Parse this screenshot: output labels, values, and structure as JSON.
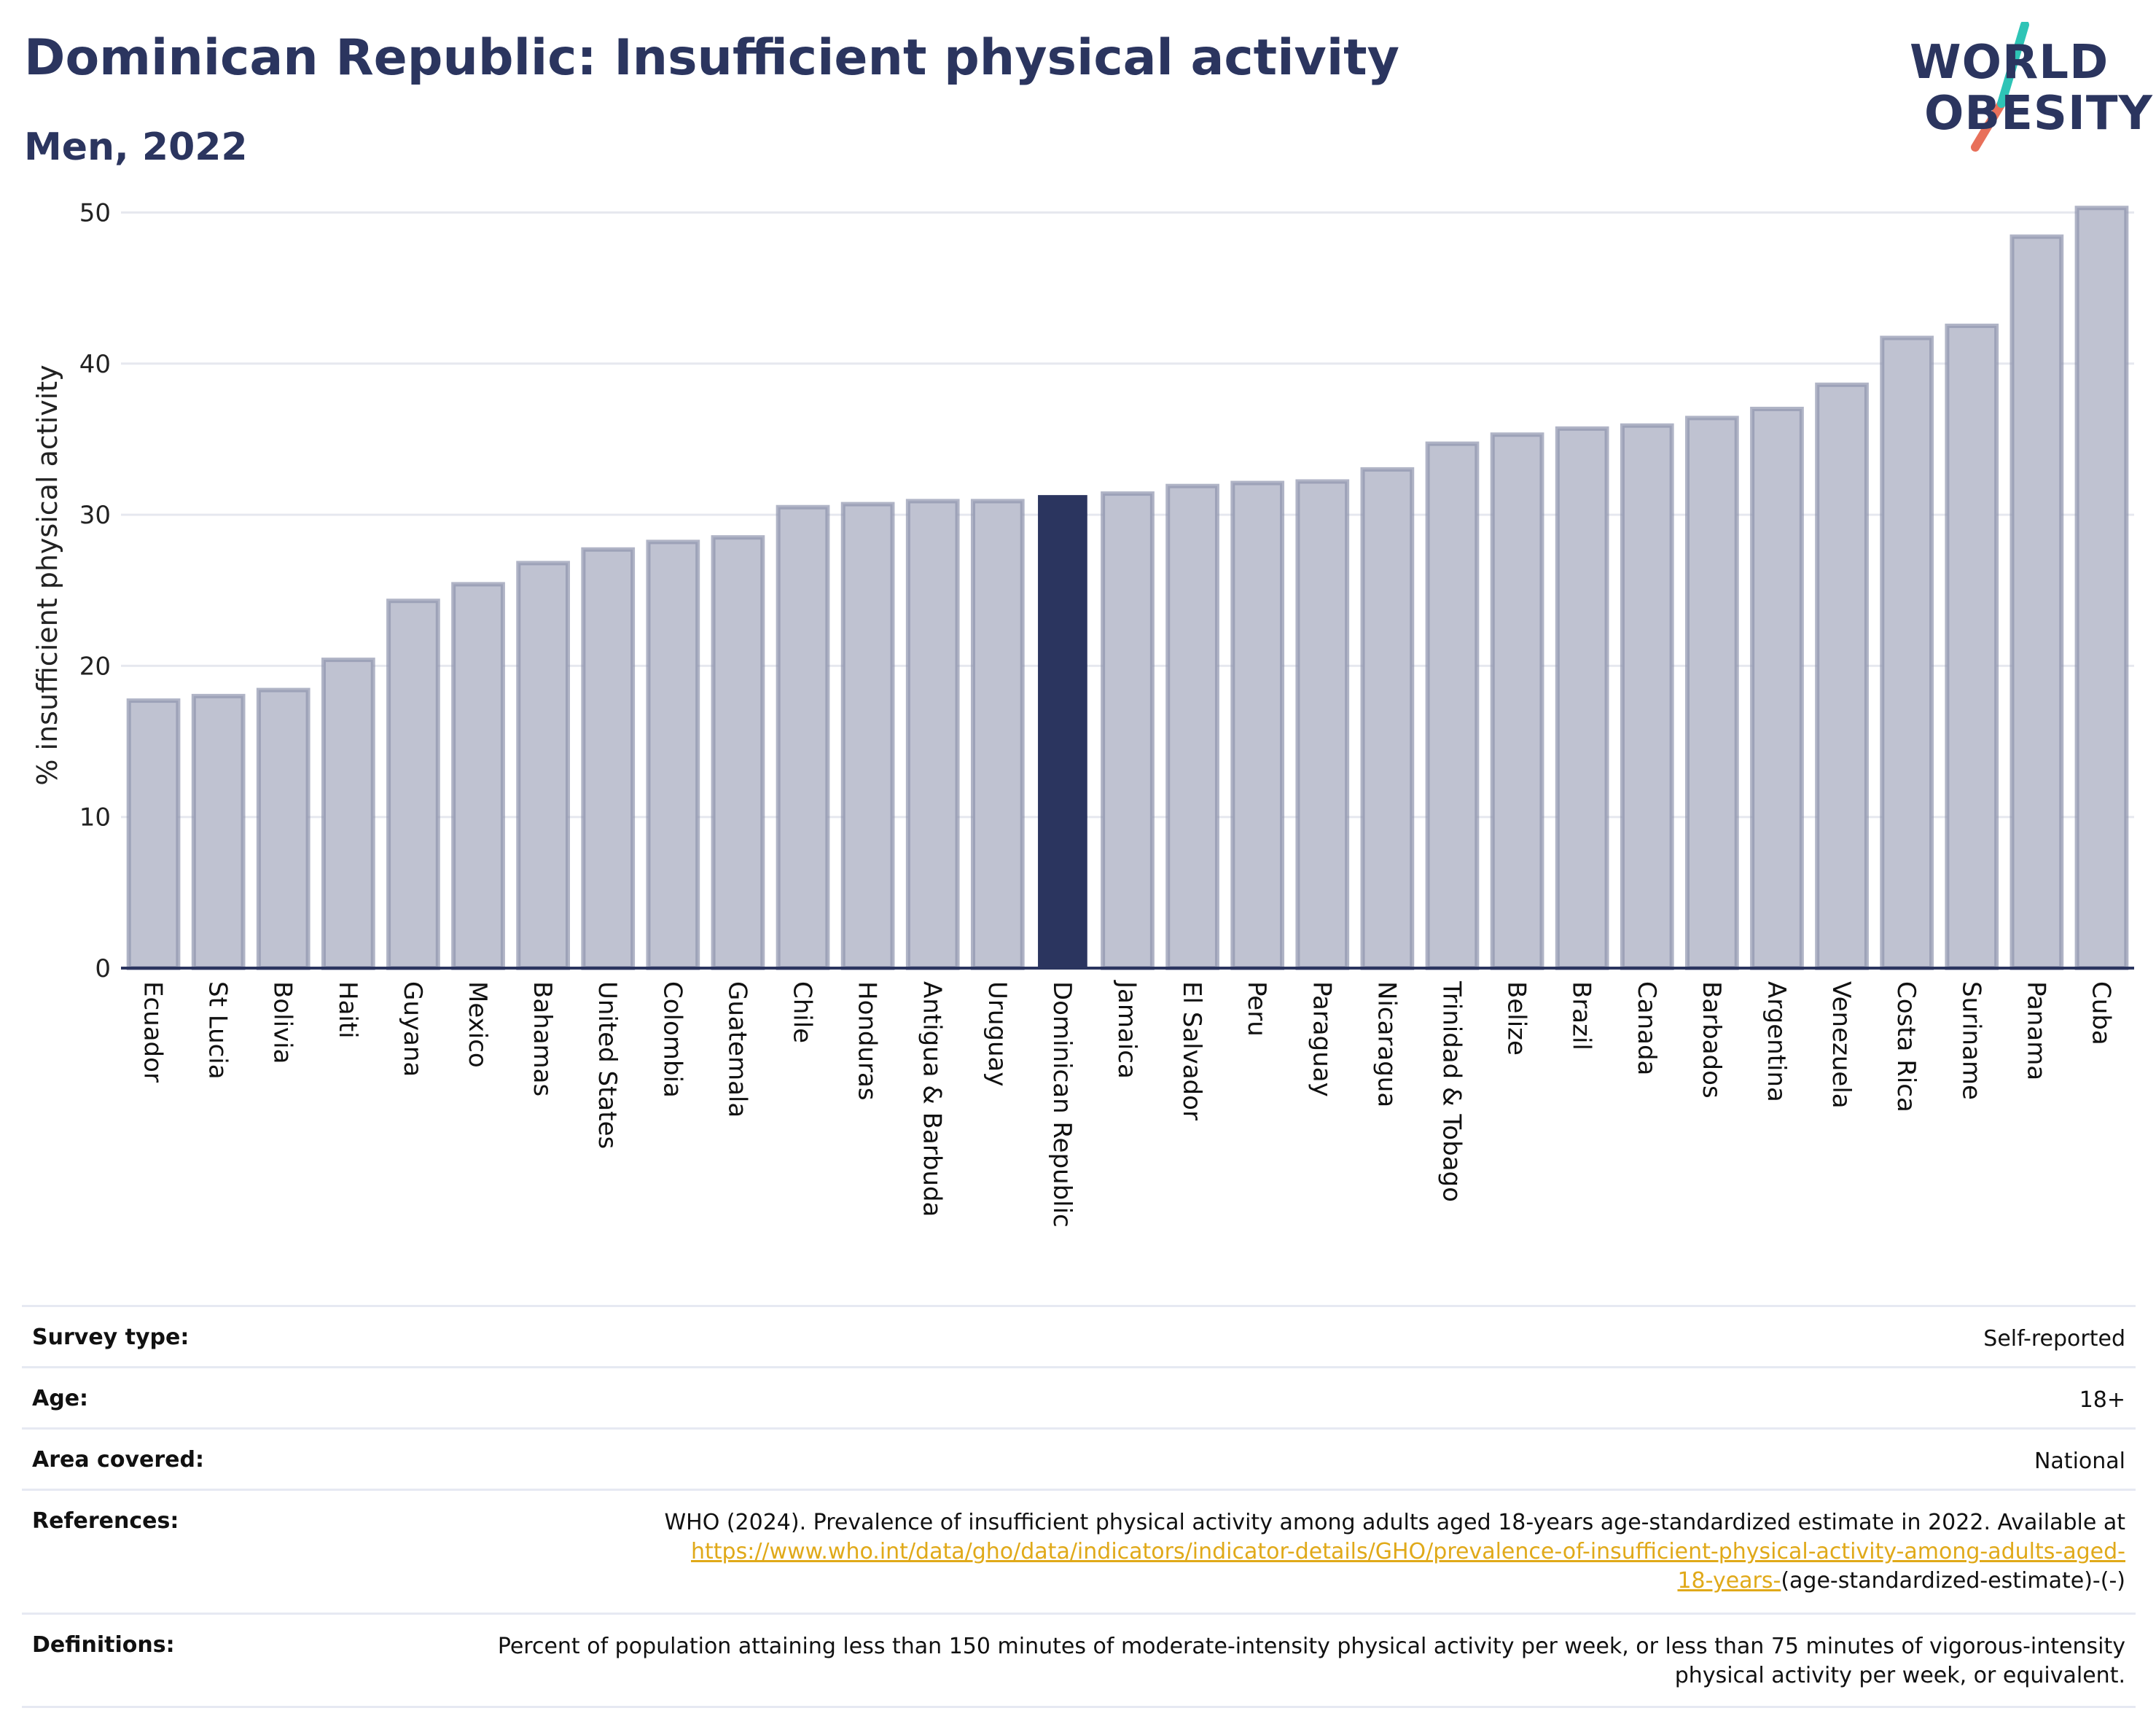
{
  "title": "Dominican Republic: Insufficient physical activity",
  "subtitle": "Men, 2022",
  "logo": {
    "line1": "WORLD",
    "line2": "OBESITY",
    "alt": "World Obesity logo"
  },
  "colors": {
    "bar": "#bfc2d1",
    "bar_border": "#8e94ae",
    "highlight": "#2b355f",
    "grid": "#e6e8ef",
    "axis": "#2b355f",
    "link": "#e0a919",
    "logo_text": "#2b355f",
    "logo_teal": "#2ec4b6",
    "logo_red": "#e8705a"
  },
  "chart_data": {
    "type": "bar",
    "title": "Dominican Republic: Insufficient physical activity",
    "subtitle": "Men, 2022",
    "xlabel": "",
    "ylabel": "% insufficient physical activity",
    "ylim": [
      0,
      52
    ],
    "yticks": [
      0,
      10,
      20,
      30,
      40,
      50
    ],
    "grid": true,
    "highlight": "Dominican Republic",
    "categories": [
      "Ecuador",
      "St Lucia",
      "Bolivia",
      "Haiti",
      "Guyana",
      "Mexico",
      "Bahamas",
      "United States",
      "Colombia",
      "Guatemala",
      "Chile",
      "Honduras",
      "Antigua & Barbuda",
      "Uruguay",
      "Dominican Republic",
      "Jamaica",
      "El Salvador",
      "Peru",
      "Paraguay",
      "Nicaragua",
      "Trinidad & Tobago",
      "Belize",
      "Brazil",
      "Canada",
      "Barbados",
      "Argentina",
      "Venezuela",
      "Costa Rica",
      "Suriname",
      "Panama",
      "Cuba"
    ],
    "values": [
      17.7,
      18.0,
      18.4,
      20.4,
      24.3,
      25.4,
      26.8,
      27.7,
      28.2,
      28.5,
      30.5,
      30.7,
      30.9,
      30.9,
      31.3,
      31.4,
      31.9,
      32.1,
      32.2,
      33.0,
      34.7,
      35.3,
      35.7,
      35.9,
      36.4,
      37.0,
      38.6,
      41.7,
      42.5,
      48.4,
      50.3
    ]
  },
  "details": {
    "survey_type": {
      "label": "Survey type:",
      "value": "Self-reported"
    },
    "age": {
      "label": "Age:",
      "value": "18+"
    },
    "area": {
      "label": "Area covered:",
      "value": "National"
    },
    "references": {
      "label": "References:",
      "text_line1": "WHO (2024). Prevalence of insufficient physical activity among adults aged 18-years age-standardized estimate in 2022. Available at",
      "link_part1": "https://www.who.int/data/gho/data/indicators/indicator-details/GHO/prevalence-of-insufficient-physical-activity-among-adults-aged-",
      "link_part2": "18-years-",
      "text_tail": "(age-standardized-estimate)-(-)"
    },
    "definitions": {
      "label": "Definitions:",
      "value": "Percent of population attaining less than 150 minutes of moderate-intensity physical activity per week, or less than 75 minutes of vigorous-intensity physical activity per week, or equivalent."
    }
  }
}
